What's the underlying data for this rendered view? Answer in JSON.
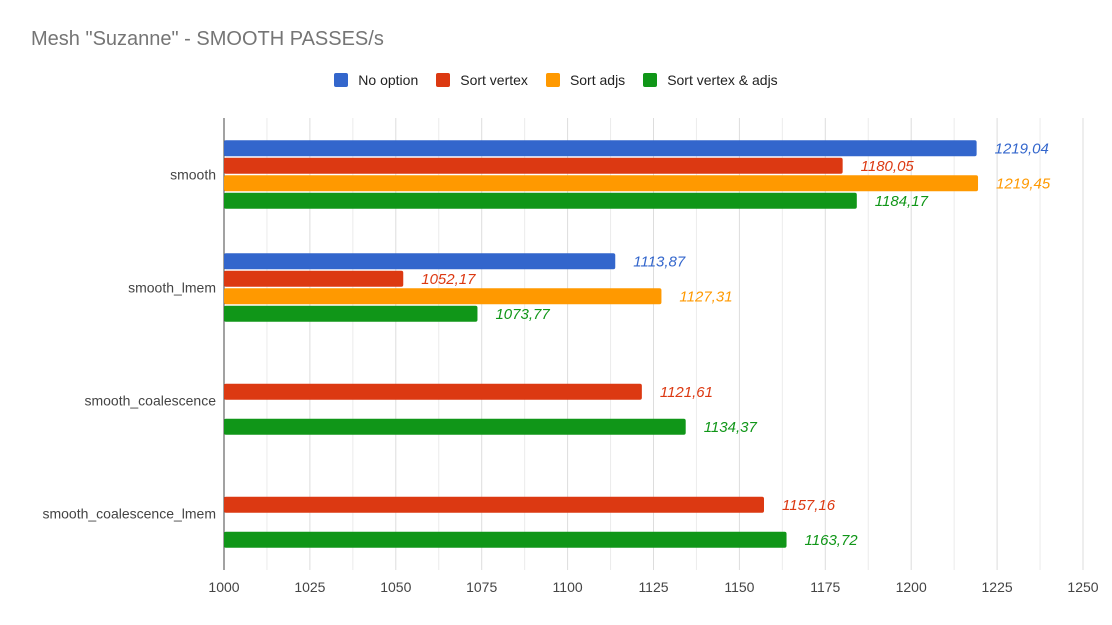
{
  "chart_data": {
    "type": "bar",
    "orientation": "horizontal",
    "title": "Mesh \"Suzanne\" - SMOOTH PASSES/s",
    "xlabel": "",
    "ylabel": "",
    "xlim": [
      1000,
      1250
    ],
    "x_ticks": [
      "1000",
      "1025",
      "1050",
      "1075",
      "1100",
      "1125",
      "1150",
      "1175",
      "1200",
      "1225",
      "1250"
    ],
    "grid": true,
    "legend_position": "top",
    "categories": [
      "smooth",
      "smooth_lmem",
      "smooth_coalescence",
      "smooth_coalescence_lmem"
    ],
    "series": [
      {
        "name": "No option",
        "color": "#3366cc",
        "values": [
          1219.04,
          1113.87,
          null,
          null
        ],
        "labels": [
          "1219,04",
          "1113,87",
          "",
          ""
        ]
      },
      {
        "name": "Sort vertex",
        "color": "#dc3912",
        "values": [
          1180.05,
          1052.17,
          1121.61,
          1157.16
        ],
        "labels": [
          "1180,05",
          "1052,17",
          "1121,61",
          "1157,16"
        ]
      },
      {
        "name": "Sort adjs",
        "color": "#ff9900",
        "values": [
          1219.45,
          1127.31,
          null,
          null
        ],
        "labels": [
          "1219,45",
          "1127,31",
          "",
          ""
        ]
      },
      {
        "name": "Sort vertex & adjs",
        "color": "#109618",
        "values": [
          1184.17,
          1073.77,
          1134.37,
          1163.72
        ],
        "labels": [
          "1184,17",
          "1073,77",
          "1134,37",
          "1163,72"
        ]
      }
    ]
  }
}
